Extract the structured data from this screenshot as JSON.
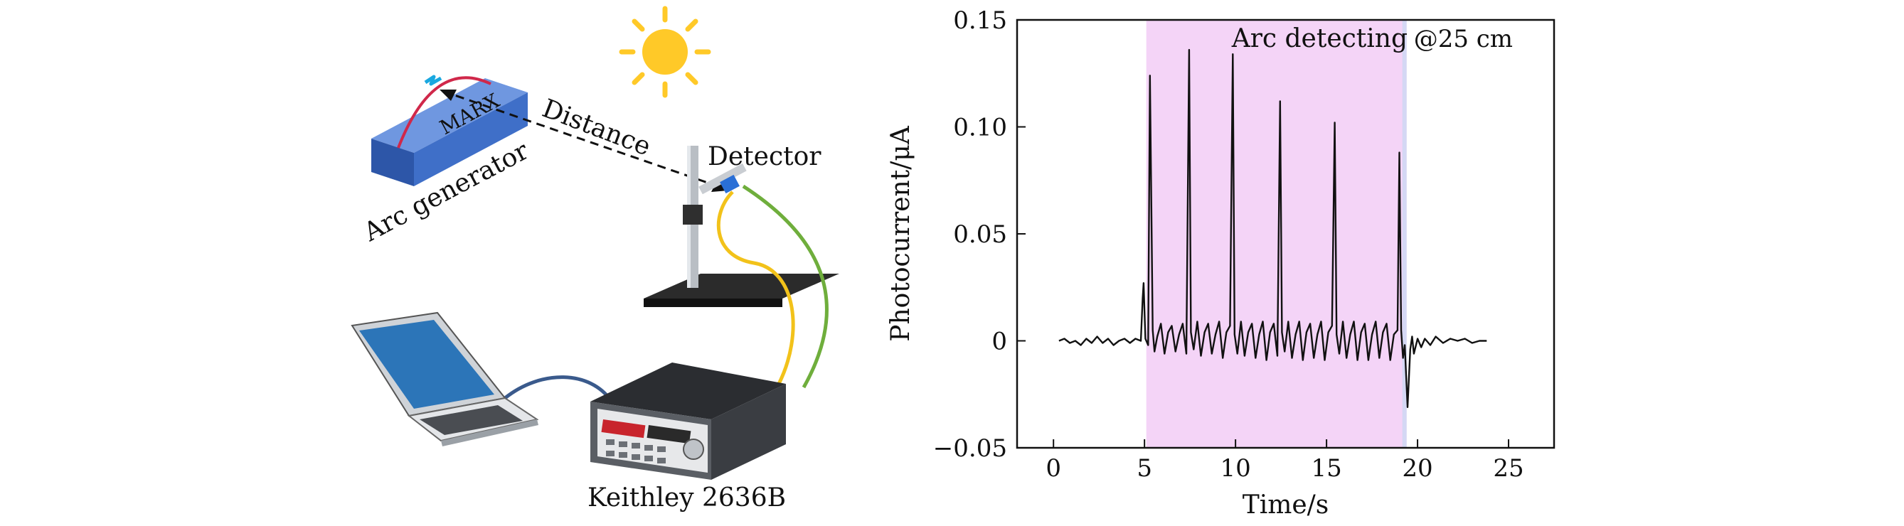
{
  "diagram": {
    "labels": {
      "marx": "MARX",
      "distance": "Distance",
      "detector": "Detector",
      "arc_generator": "Arc generator",
      "keithley": "Keithley 2636B"
    },
    "icons": [
      "sun-icon",
      "marx-arc-generator-icon",
      "detector-stand-icon",
      "laptop-icon",
      "sourcemeter-icon"
    ],
    "colors": {
      "box_blue": "#3f6fc8",
      "arc_red": "#d0284a",
      "spark_cyan": "#1aa8e0",
      "sun_yellow": "#ffc928",
      "cable_yellow": "#f2c21a",
      "cable_green": "#6fae3c",
      "cable_blue": "#3a5a8c"
    }
  },
  "chart_data": {
    "type": "line",
    "xlabel": "Time/s",
    "ylabel": "Photocurrent/μA",
    "xlim": [
      -2,
      27.5
    ],
    "ylim": [
      -0.05,
      0.15
    ],
    "xticks": [
      0,
      5,
      10,
      15,
      20,
      25
    ],
    "xtick_labels": [
      "0",
      "5",
      "10",
      "15",
      "20",
      "25"
    ],
    "yticks": [
      -0.05,
      0,
      0.05,
      0.1,
      0.15
    ],
    "ytick_labels": [
      "−0.05",
      "0",
      "0.05",
      "0.10",
      "0.15"
    ],
    "grid": false,
    "annotations": {
      "region_label": "Arc detecting",
      "distance_note": "@25 cm"
    },
    "shaded_region": {
      "x_start": 5.1,
      "x_end": 19.4,
      "color": "#f4d4f7"
    },
    "series": [
      {
        "color": "#111111",
        "x": [
          0.3,
          0.6,
          0.9,
          1.2,
          1.5,
          1.8,
          2.1,
          2.4,
          2.7,
          3.0,
          3.3,
          3.6,
          3.9,
          4.2,
          4.5,
          4.8,
          4.9,
          4.95,
          5.05,
          5.2,
          5.3,
          5.45,
          5.55,
          5.7,
          5.9,
          6.1,
          6.3,
          6.5,
          6.7,
          6.9,
          7.1,
          7.3,
          7.45,
          7.55,
          7.7,
          7.9,
          8.1,
          8.3,
          8.5,
          8.7,
          8.9,
          9.1,
          9.3,
          9.5,
          9.7,
          9.85,
          9.95,
          10.1,
          10.3,
          10.5,
          10.7,
          10.9,
          11.1,
          11.3,
          11.5,
          11.7,
          11.9,
          12.1,
          12.3,
          12.45,
          12.55,
          12.7,
          12.9,
          13.1,
          13.3,
          13.5,
          13.7,
          13.9,
          14.1,
          14.3,
          14.5,
          14.7,
          14.9,
          15.1,
          15.3,
          15.45,
          15.55,
          15.7,
          15.9,
          16.1,
          16.3,
          16.5,
          16.7,
          16.9,
          17.1,
          17.3,
          17.5,
          17.7,
          17.9,
          18.1,
          18.3,
          18.5,
          18.7,
          18.9,
          19.0,
          19.1,
          19.2,
          19.3,
          19.45,
          19.6,
          19.7,
          19.8,
          20.0,
          20.2,
          20.4,
          20.7,
          21.0,
          21.4,
          21.8,
          22.2,
          22.6,
          23.0,
          23.4,
          23.8
        ],
        "values": [
          0.0,
          0.001,
          -0.001,
          0.0,
          -0.002,
          0.001,
          -0.001,
          0.002,
          -0.001,
          0.001,
          -0.002,
          0.0,
          0.001,
          -0.001,
          0.001,
          0.0,
          0.02,
          0.027,
          0.001,
          -0.002,
          0.124,
          0.005,
          -0.005,
          0.002,
          0.008,
          -0.006,
          0.004,
          0.007,
          -0.005,
          0.003,
          0.008,
          -0.006,
          0.136,
          0.004,
          -0.004,
          0.009,
          -0.007,
          0.004,
          0.008,
          -0.006,
          0.003,
          0.009,
          -0.008,
          0.004,
          0.007,
          0.134,
          0.003,
          -0.006,
          0.009,
          -0.007,
          0.004,
          0.008,
          -0.008,
          0.003,
          0.009,
          -0.009,
          0.004,
          0.008,
          -0.007,
          0.112,
          0.004,
          -0.005,
          0.009,
          -0.008,
          0.003,
          0.009,
          -0.009,
          0.004,
          0.008,
          -0.008,
          0.003,
          0.009,
          -0.009,
          0.004,
          0.007,
          0.102,
          0.003,
          -0.006,
          0.009,
          -0.008,
          0.003,
          0.009,
          -0.009,
          0.004,
          0.008,
          -0.009,
          0.003,
          0.009,
          -0.008,
          0.004,
          0.008,
          -0.009,
          0.003,
          0.005,
          0.088,
          0.005,
          -0.008,
          -0.002,
          -0.031,
          -0.004,
          0.002,
          -0.006,
          0.001,
          -0.003,
          0.001,
          -0.002,
          0.002,
          -0.001,
          0.001,
          0.0,
          0.001,
          -0.001,
          0.0,
          0.0
        ]
      }
    ]
  }
}
